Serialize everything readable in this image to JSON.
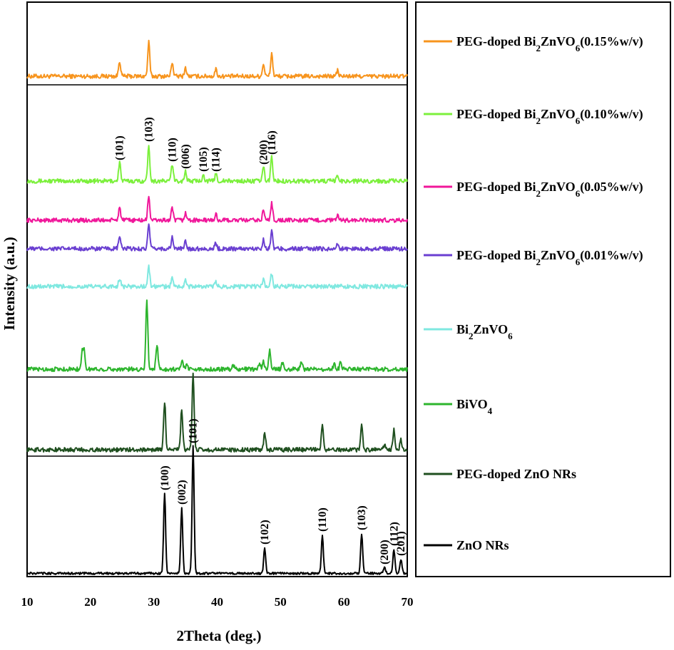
{
  "chart_data": {
    "type": "line",
    "xlabel": "2Theta (deg.)",
    "ylabel": "Intensity  (a.u.)",
    "xlim": [
      10,
      70
    ],
    "xticks": [
      "10",
      "20",
      "30",
      "40",
      "50",
      "60",
      "70"
    ],
    "grid": false,
    "legend_position": "right panel",
    "series": [
      {
        "name_parts": [
          "PEG-doped  Bi",
          "2",
          "ZnVO",
          "6",
          "(0.15%w/v)"
        ],
        "color": "#f7941d",
        "peaks": [
          [
            24.6,
            22
          ],
          [
            29.2,
            48
          ],
          [
            32.9,
            20
          ],
          [
            35.0,
            12
          ],
          [
            39.8,
            10
          ],
          [
            47.3,
            18
          ],
          [
            48.6,
            32
          ],
          [
            59.0,
            8
          ]
        ]
      },
      {
        "name_parts": [
          "PEG-doped  Bi",
          "2",
          "ZnVO",
          "6",
          "(0.10%w/v)"
        ],
        "color": "#7cf03c",
        "peaks": [
          [
            24.6,
            26
          ],
          [
            29.2,
            52
          ],
          [
            32.9,
            24
          ],
          [
            35.0,
            14
          ],
          [
            37.8,
            10
          ],
          [
            39.8,
            10
          ],
          [
            47.3,
            20
          ],
          [
            48.6,
            34
          ],
          [
            59.0,
            8
          ]
        ]
      },
      {
        "name_parts": [
          "PEG-doped  Bi",
          "2",
          "ZnVO",
          "6",
          "(0.05%w/v)"
        ],
        "color": "#f0179a",
        "peaks": [
          [
            24.6,
            18
          ],
          [
            29.2,
            34
          ],
          [
            32.9,
            16
          ],
          [
            35.0,
            10
          ],
          [
            39.8,
            8
          ],
          [
            47.3,
            14
          ],
          [
            48.6,
            24
          ],
          [
            59.0,
            6
          ]
        ]
      },
      {
        "name_parts": [
          "PEG-doped  Bi",
          "2",
          "ZnVO",
          "6",
          "(0.01%w/v)"
        ],
        "color": "#6a3fd1",
        "peaks": [
          [
            24.6,
            18
          ],
          [
            29.2,
            34
          ],
          [
            32.9,
            16
          ],
          [
            35.0,
            10
          ],
          [
            39.8,
            8
          ],
          [
            47.3,
            14
          ],
          [
            48.6,
            24
          ],
          [
            59.0,
            6
          ]
        ]
      },
      {
        "name_parts": [
          "Bi",
          "2",
          "ZnVO",
          "6",
          ""
        ],
        "color": "#7fe8e0",
        "peaks": [
          [
            24.6,
            12
          ],
          [
            29.2,
            28
          ],
          [
            32.9,
            12
          ],
          [
            35.0,
            8
          ],
          [
            39.8,
            6
          ],
          [
            47.3,
            10
          ],
          [
            48.6,
            18
          ]
        ]
      },
      {
        "name_parts": [
          "BiVO",
          "4",
          "",
          "",
          ""
        ],
        "color": "#2db52d",
        "peaks": [
          [
            18.7,
            22
          ],
          [
            19.0,
            24
          ],
          [
            28.9,
            95
          ],
          [
            30.5,
            34
          ],
          [
            34.5,
            12
          ],
          [
            35.2,
            8
          ],
          [
            42.5,
            6
          ],
          [
            46.7,
            8
          ],
          [
            47.3,
            10
          ],
          [
            48.3,
            26
          ],
          [
            50.3,
            8
          ],
          [
            53.3,
            10
          ],
          [
            58.5,
            8
          ],
          [
            59.5,
            10
          ]
        ]
      },
      {
        "name_parts": [
          "PEG-doped ZnO NRs",
          "",
          "",
          "",
          ""
        ],
        "color": "#1f4f1f",
        "peaks": [
          [
            31.7,
            68
          ],
          [
            34.4,
            58
          ],
          [
            36.2,
            106
          ],
          [
            47.5,
            22
          ],
          [
            56.6,
            34
          ],
          [
            62.8,
            34
          ],
          [
            66.4,
            6
          ],
          [
            67.9,
            28
          ],
          [
            69.0,
            14
          ]
        ]
      },
      {
        "name_parts": [
          "ZnO NRs",
          "",
          "",
          "",
          ""
        ],
        "color": "#000000",
        "peaks": [
          [
            31.7,
            112
          ],
          [
            34.4,
            92
          ],
          [
            36.2,
            178
          ],
          [
            47.5,
            36
          ],
          [
            56.6,
            54
          ],
          [
            62.8,
            56
          ],
          [
            66.4,
            8
          ],
          [
            67.9,
            34
          ],
          [
            69.0,
            20
          ]
        ]
      }
    ],
    "annotations": [
      {
        "series": 1,
        "labels": [
          [
            24.6,
            "(101)"
          ],
          [
            29.2,
            "(103)"
          ],
          [
            32.9,
            "(110)"
          ],
          [
            35.0,
            "(006)"
          ],
          [
            37.8,
            "(105)"
          ],
          [
            39.8,
            "(114)"
          ],
          [
            47.3,
            "(200)"
          ],
          [
            48.6,
            "(116)"
          ]
        ]
      },
      {
        "series": 7,
        "labels": [
          [
            31.7,
            "(100)"
          ],
          [
            34.4,
            "(002)"
          ],
          [
            36.2,
            "(101)"
          ],
          [
            47.5,
            "(102)"
          ],
          [
            56.6,
            "(110)"
          ],
          [
            62.8,
            "(103)"
          ],
          [
            66.4,
            "(200)"
          ],
          [
            67.9,
            "(112)"
          ],
          [
            69.0,
            "(201)"
          ]
        ]
      }
    ]
  }
}
